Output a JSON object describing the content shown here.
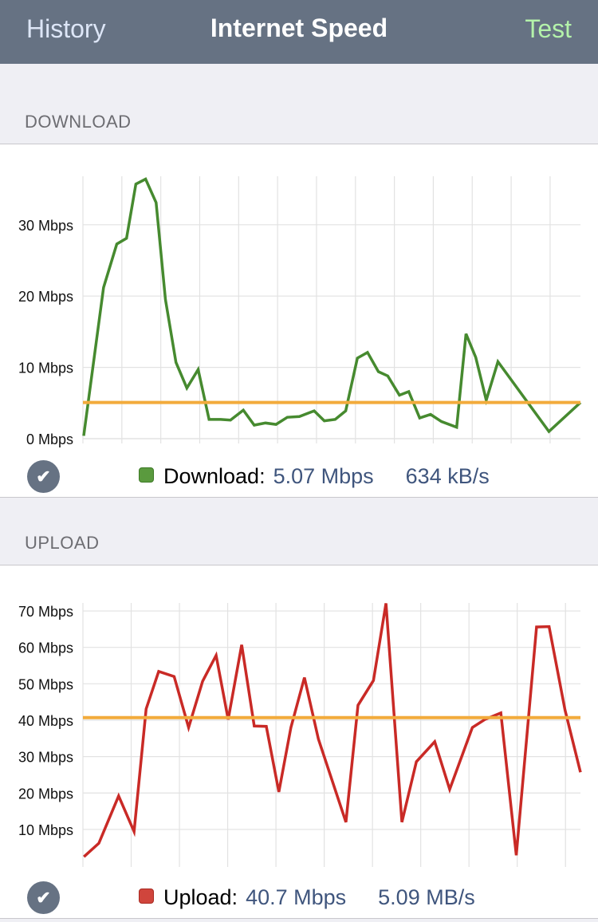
{
  "nav": {
    "left_button": "History",
    "title": "Internet Speed",
    "right_button": "Test"
  },
  "colors": {
    "nav_bg": "#667283",
    "download": "#468a2f",
    "upload": "#c92a26",
    "average": "#f2ab3c",
    "value_text": "#3f557d"
  },
  "download": {
    "section_title": "DOWNLOAD",
    "legend_label": "Download:",
    "speed": "5.07 Mbps",
    "rate": "634 kB/s",
    "status_icon": "checkmark-circle-icon"
  },
  "upload": {
    "section_title": "UPLOAD",
    "legend_label": "Upload:",
    "speed": "40.7 Mbps",
    "rate": "5.09 MB/s",
    "status_icon": "checkmark-circle-icon"
  },
  "chart_data": [
    {
      "type": "line",
      "ylim": [
        0,
        36.8
      ],
      "xlim": [
        0,
        12.78
      ],
      "grid": true,
      "y_ticks": [
        0,
        10,
        20,
        30
      ],
      "y_tick_labels": [
        "0 Mbps",
        "10 Mbps",
        "20 Mbps",
        "30 Mbps"
      ],
      "average": 5.07,
      "series": [
        {
          "x": [
            0.02,
            0.53,
            0.87,
            1.12,
            1.36,
            1.61,
            1.88,
            2.12,
            2.39,
            2.67,
            2.96,
            3.24,
            3.54,
            3.79,
            4.12,
            4.4,
            4.69,
            4.96,
            5.25,
            5.56,
            5.94,
            6.2,
            6.48,
            6.75,
            7.05,
            7.31,
            7.59,
            7.83,
            8.13,
            8.37,
            8.65,
            8.93,
            9.21,
            9.6,
            9.84,
            10.09,
            10.36,
            10.66,
            11.97,
            12.78
          ],
          "values": [
            0.4,
            21.2,
            27.3,
            28.1,
            35.7,
            36.4,
            33.1,
            19.5,
            10.7,
            7.1,
            9.7,
            2.7,
            2.7,
            2.6,
            4.0,
            1.9,
            2.2,
            2.0,
            3.0,
            3.1,
            3.9,
            2.5,
            2.7,
            3.9,
            11.3,
            12.1,
            9.4,
            8.8,
            6.1,
            6.6,
            2.9,
            3.4,
            2.4,
            1.6,
            14.7,
            11.4,
            5.4,
            10.8,
            1.0,
            5.07
          ]
        }
      ]
    },
    {
      "type": "line",
      "ylim": [
        1,
        72.2
      ],
      "xlim": [
        0,
        10.31
      ],
      "grid": true,
      "y_ticks": [
        10,
        20,
        30,
        40,
        50,
        60,
        70
      ],
      "y_tick_labels": [
        "10 Mbps",
        "20 Mbps",
        "30 Mbps",
        "40 Mbps",
        "50 Mbps",
        "60 Mbps",
        "70 Mbps"
      ],
      "average": 40.7,
      "series": [
        {
          "x": [
            0.02,
            0.33,
            0.74,
            1.06,
            1.31,
            1.57,
            1.89,
            2.19,
            2.48,
            2.76,
            3.01,
            3.29,
            3.55,
            3.8,
            4.06,
            4.31,
            4.59,
            4.88,
            5.45,
            5.7,
            6.02,
            6.28,
            6.61,
            6.91,
            7.29,
            7.6,
            8.07,
            8.33,
            8.66,
            8.98,
            9.4,
            9.66,
            9.99,
            10.31
          ],
          "values": [
            2.5,
            6.2,
            19.2,
            9.4,
            43.1,
            53.4,
            52.0,
            38.0,
            50.7,
            57.8,
            40.2,
            60.7,
            38.4,
            38.3,
            20.3,
            38.0,
            51.7,
            34.8,
            12.0,
            44.1,
            50.9,
            72.1,
            12.0,
            28.6,
            34.1,
            21.0,
            38.0,
            40.2,
            42.0,
            2.9,
            65.6,
            65.7,
            42.8,
            25.7
          ]
        }
      ]
    }
  ]
}
